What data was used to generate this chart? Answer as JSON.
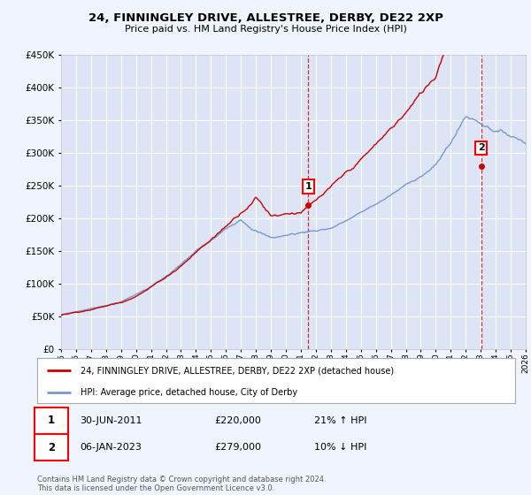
{
  "title": "24, FINNINGLEY DRIVE, ALLESTREE, DERBY, DE22 2XP",
  "subtitle": "Price paid vs. HM Land Registry's House Price Index (HPI)",
  "ylim": [
    0,
    450000
  ],
  "yticks": [
    0,
    50000,
    100000,
    150000,
    200000,
    250000,
    300000,
    350000,
    400000,
    450000
  ],
  "xlim_start": 1995,
  "xlim_end": 2026,
  "background_color": "#f0f4ff",
  "plot_bg_color": "#dde4f5",
  "grid_color": "#ffffff",
  "line_color_red": "#cc0000",
  "line_color_blue": "#7799cc",
  "sale1_x": 2011.5,
  "sale1_y": 220000,
  "sale1_label": "1",
  "sale1_date": "30-JUN-2011",
  "sale1_price": "£220,000",
  "sale1_hpi": "21% ↑ HPI",
  "sale2_x": 2023.03,
  "sale2_y": 279000,
  "sale2_label": "2",
  "sale2_date": "06-JAN-2023",
  "sale2_price": "£279,000",
  "sale2_hpi": "10% ↓ HPI",
  "legend_red": "24, FINNINGLEY DRIVE, ALLESTREE, DERBY, DE22 2XP (detached house)",
  "legend_blue": "HPI: Average price, detached house, City of Derby",
  "footnote": "Contains HM Land Registry data © Crown copyright and database right 2024.\nThis data is licensed under the Open Government Licence v3.0."
}
